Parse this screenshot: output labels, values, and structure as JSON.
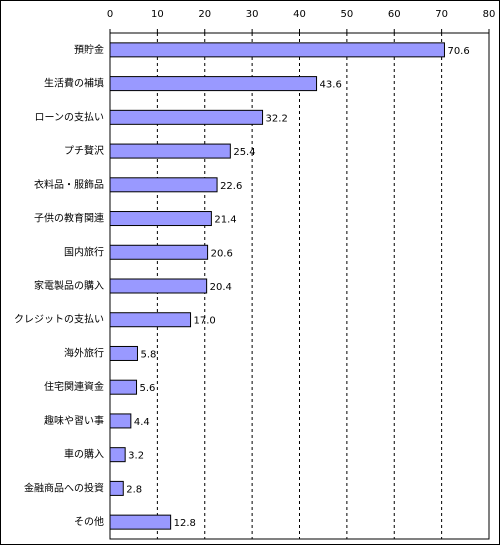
{
  "chart_data": {
    "type": "bar",
    "orientation": "horizontal",
    "categories": [
      "預貯金",
      "生活費の補填",
      "ローンの支払い",
      "プチ贅沢",
      "衣料品・服飾品",
      "子供の教育関連",
      "国内旅行",
      "家電製品の購入",
      "クレジットの支払い",
      "海外旅行",
      "住宅関連資金",
      "趣味や習い事",
      "車の購入",
      "金融商品への投資",
      "その他"
    ],
    "values": [
      70.6,
      43.6,
      32.2,
      25.4,
      22.6,
      21.4,
      20.6,
      20.4,
      17.0,
      5.8,
      5.6,
      4.4,
      3.2,
      2.8,
      12.8
    ],
    "value_labels": [
      "70.6",
      "43.6",
      "32.2",
      "25.4",
      "22.6",
      "21.4",
      "20.6",
      "20.4",
      "17.0",
      "5.8",
      "5.6",
      "4.4",
      "3.2",
      "2.8",
      "12.8"
    ],
    "color": "#9999ff",
    "xlim": [
      0,
      80
    ],
    "xticks": [
      0,
      10,
      20,
      30,
      40,
      50,
      60,
      70,
      80
    ],
    "grid": true
  }
}
